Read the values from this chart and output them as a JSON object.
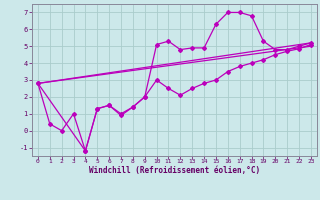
{
  "title": "",
  "xlabel": "Windchill (Refroidissement éolien,°C)",
  "bg_color": "#cce8ea",
  "line_color": "#bb00bb",
  "grid_color": "#aacccc",
  "xlim": [
    -0.5,
    23.5
  ],
  "ylim": [
    -1.5,
    7.5
  ],
  "yticks": [
    -1,
    0,
    1,
    2,
    3,
    4,
    5,
    6,
    7
  ],
  "xticks": [
    0,
    1,
    2,
    3,
    4,
    5,
    6,
    7,
    8,
    9,
    10,
    11,
    12,
    13,
    14,
    15,
    16,
    17,
    18,
    19,
    20,
    21,
    22,
    23
  ],
  "series1_x": [
    0,
    1,
    2,
    3,
    4,
    5,
    6,
    7,
    8,
    9,
    10,
    11,
    12,
    13,
    14,
    15,
    16,
    17,
    18,
    19,
    20,
    21,
    22,
    23
  ],
  "series1_y": [
    2.8,
    0.4,
    0.0,
    1.0,
    -1.2,
    1.3,
    1.5,
    0.9,
    1.4,
    2.0,
    5.1,
    5.3,
    4.8,
    4.9,
    4.9,
    6.3,
    7.0,
    7.0,
    6.8,
    5.3,
    4.8,
    4.8,
    5.0,
    5.2
  ],
  "series2_x": [
    0,
    4,
    5,
    6,
    7,
    8,
    9,
    10,
    11,
    12,
    13,
    14,
    15,
    16,
    17,
    18,
    19,
    20,
    21,
    22,
    23
  ],
  "series2_y": [
    2.8,
    -1.2,
    1.3,
    1.5,
    1.0,
    1.4,
    2.0,
    3.0,
    2.5,
    2.1,
    2.5,
    2.8,
    3.0,
    3.5,
    3.8,
    4.0,
    4.2,
    4.5,
    4.7,
    4.85,
    5.1
  ],
  "line1_x": [
    0,
    23
  ],
  "line1_y": [
    2.8,
    5.2
  ],
  "line2_x": [
    0,
    23
  ],
  "line2_y": [
    2.8,
    5.0
  ],
  "marker_size": 2.0,
  "line_width": 0.9
}
